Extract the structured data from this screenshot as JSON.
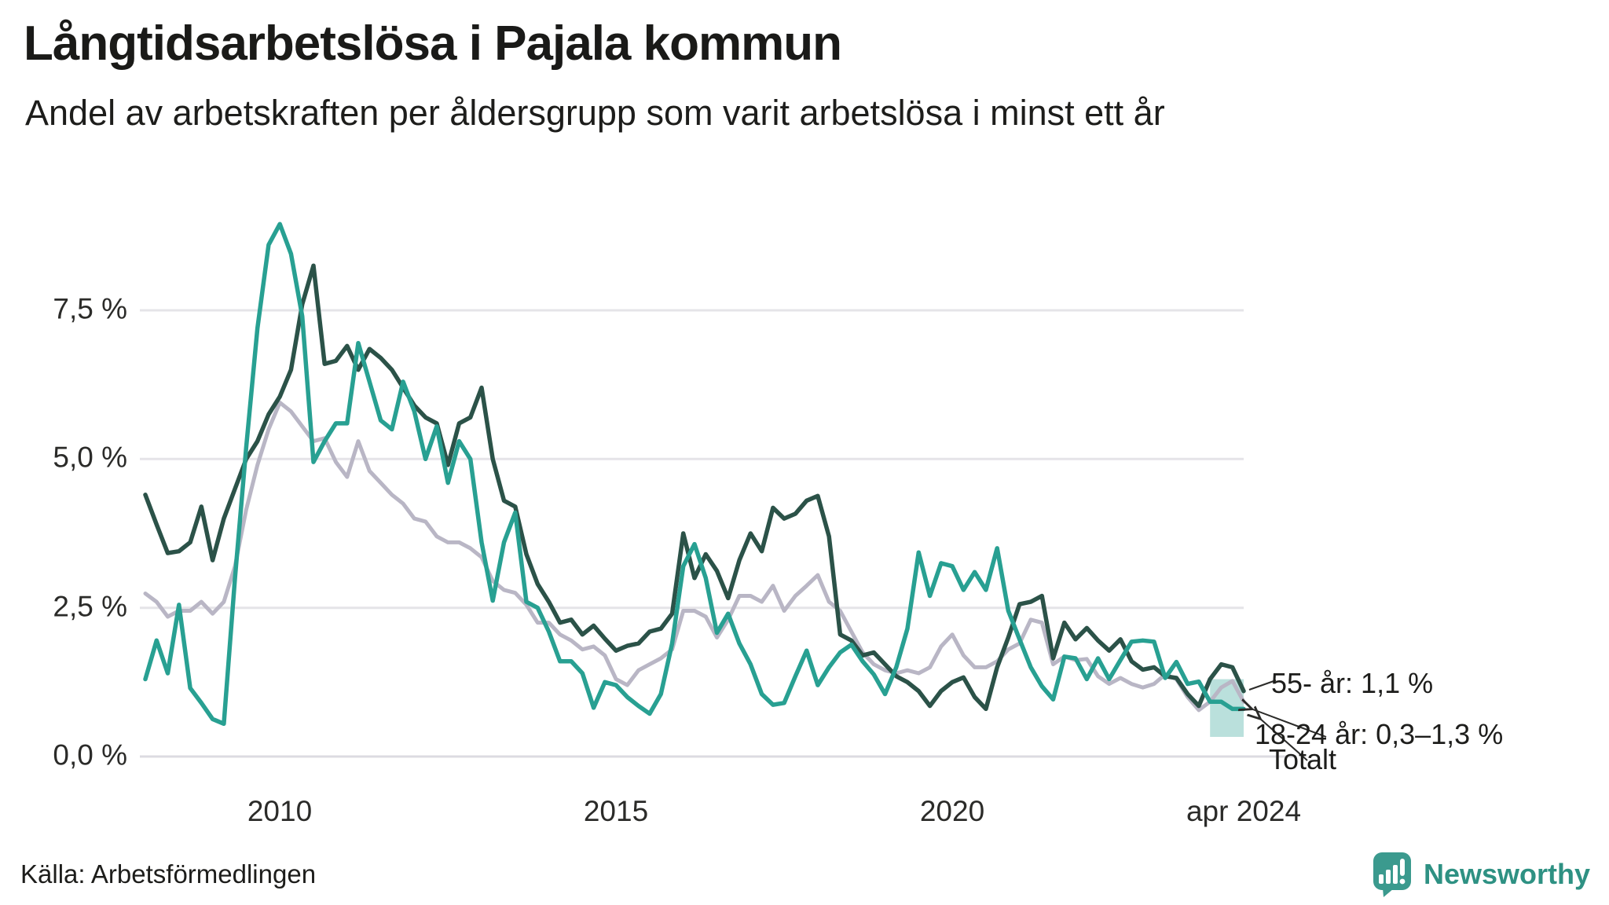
{
  "header": {
    "title": "Långtidsarbetslösa i Pajala kommun",
    "subtitle": "Andel av arbetskraften per åldersgrupp som varit arbetslösa i minst ett år"
  },
  "chart_data": {
    "type": "line",
    "title": "Långtidsarbetslösa i Pajala kommun",
    "subtitle": "Andel av arbetskraften per åldersgrupp som varit arbetslösa i minst ett år",
    "unit": "%",
    "x_start": "2008-01",
    "x_end": "2024-04",
    "step_months": 2,
    "ylim": [
      0,
      9.5
    ],
    "grid": "horizontal",
    "yticks": {
      "values": [
        0,
        2.5,
        5,
        7.5
      ],
      "labels": [
        "0,0 %",
        "2,5 %",
        "5,0 %",
        "7,5 %"
      ]
    },
    "xticks": {
      "months": [
        24,
        84,
        144,
        196
      ],
      "labels": [
        "2010",
        "2015",
        "2020",
        "apr 2024"
      ]
    },
    "series": [
      {
        "name": "Totalt",
        "color": "#b9b6c5",
        "width": 5,
        "values": [
          2.74,
          2.6,
          2.35,
          2.45,
          2.45,
          2.6,
          2.4,
          2.6,
          3.2,
          4.15,
          4.9,
          5.5,
          5.95,
          5.8,
          5.55,
          5.3,
          5.35,
          4.95,
          4.7,
          5.3,
          4.8,
          4.6,
          4.4,
          4.25,
          4.0,
          3.95,
          3.7,
          3.6,
          3.6,
          3.5,
          3.35,
          2.95,
          2.8,
          2.75,
          2.55,
          2.25,
          2.25,
          2.05,
          1.95,
          1.8,
          1.85,
          1.7,
          1.3,
          1.2,
          1.45,
          1.55,
          1.65,
          1.8,
          2.45,
          2.45,
          2.35,
          2.0,
          2.3,
          2.7,
          2.7,
          2.6,
          2.87,
          2.45,
          2.7,
          2.87,
          3.05,
          2.6,
          2.45,
          2.1,
          1.75,
          1.55,
          1.45,
          1.4,
          1.45,
          1.4,
          1.5,
          1.85,
          2.05,
          1.7,
          1.5,
          1.5,
          1.6,
          1.8,
          1.9,
          2.3,
          2.25,
          1.55,
          1.68,
          1.62,
          1.64,
          1.35,
          1.22,
          1.32,
          1.22,
          1.16,
          1.22,
          1.38,
          1.3,
          1.0,
          0.78,
          0.92,
          1.16,
          1.27,
          0.92
        ]
      },
      {
        "name": "55- år",
        "color": "#2b5248",
        "width": 5.5,
        "values": [
          4.4,
          3.9,
          3.42,
          3.45,
          3.6,
          4.2,
          3.3,
          4.0,
          4.5,
          5.0,
          5.3,
          5.75,
          6.05,
          6.5,
          7.6,
          8.25,
          6.6,
          6.65,
          6.9,
          6.5,
          6.85,
          6.7,
          6.5,
          6.2,
          5.9,
          5.7,
          5.6,
          4.9,
          5.6,
          5.7,
          6.2,
          5.0,
          4.3,
          4.2,
          3.4,
          2.9,
          2.6,
          2.25,
          2.3,
          2.05,
          2.2,
          1.98,
          1.78,
          1.86,
          1.9,
          2.1,
          2.15,
          2.4,
          3.75,
          3.0,
          3.4,
          3.12,
          2.66,
          3.3,
          3.75,
          3.45,
          4.18,
          4.0,
          4.08,
          4.3,
          4.38,
          3.7,
          2.05,
          1.95,
          1.7,
          1.75,
          1.55,
          1.35,
          1.25,
          1.1,
          0.85,
          1.1,
          1.25,
          1.33,
          1.0,
          0.8,
          1.5,
          2.0,
          2.56,
          2.6,
          2.7,
          1.65,
          2.25,
          1.97,
          2.16,
          1.95,
          1.78,
          1.97,
          1.6,
          1.46,
          1.5,
          1.35,
          1.32,
          1.05,
          0.85,
          1.3,
          1.55,
          1.5,
          1.1
        ]
      },
      {
        "name": "18-24 år",
        "color": "#28a092",
        "width": 5.5,
        "values": [
          1.3,
          1.95,
          1.4,
          2.55,
          1.15,
          0.9,
          0.63,
          0.55,
          3.0,
          5.2,
          7.2,
          8.6,
          8.95,
          8.45,
          7.4,
          4.95,
          5.3,
          5.6,
          5.6,
          6.95,
          6.3,
          5.65,
          5.5,
          6.3,
          5.8,
          5.0,
          5.55,
          4.6,
          5.3,
          5.0,
          3.6,
          2.62,
          3.6,
          4.1,
          2.6,
          2.5,
          2.1,
          1.6,
          1.6,
          1.4,
          0.82,
          1.25,
          1.2,
          1.0,
          0.85,
          0.72,
          1.05,
          1.9,
          3.2,
          3.57,
          3.0,
          2.08,
          2.4,
          1.9,
          1.55,
          1.05,
          0.87,
          0.9,
          1.35,
          1.78,
          1.2,
          1.5,
          1.75,
          1.88,
          1.6,
          1.38,
          1.05,
          1.5,
          2.15,
          3.43,
          2.7,
          3.25,
          3.2,
          2.8,
          3.1,
          2.8,
          3.5,
          2.45,
          1.97,
          1.5,
          1.18,
          0.96,
          1.68,
          1.65,
          1.3,
          1.65,
          1.3,
          1.62,
          1.93,
          1.95,
          1.93,
          1.32,
          1.59,
          1.22,
          1.26,
          0.92,
          0.92,
          0.8,
          0.8
        ]
      }
    ],
    "uncertainty_band": {
      "series": "18-24 år",
      "from_month": 190,
      "to_month": 196,
      "low": 0.33,
      "high": 1.3,
      "color": "rgba(40,160,146,0.32)"
    }
  },
  "annotations": [
    {
      "label": "55- år: 1,1 %"
    },
    {
      "label": "18-24 år: 0,3–1,3 %"
    },
    {
      "label": "Totalt"
    }
  ],
  "footer": {
    "source": "Källa: Arbetsförmedlingen",
    "brand": "Newsworthy"
  }
}
